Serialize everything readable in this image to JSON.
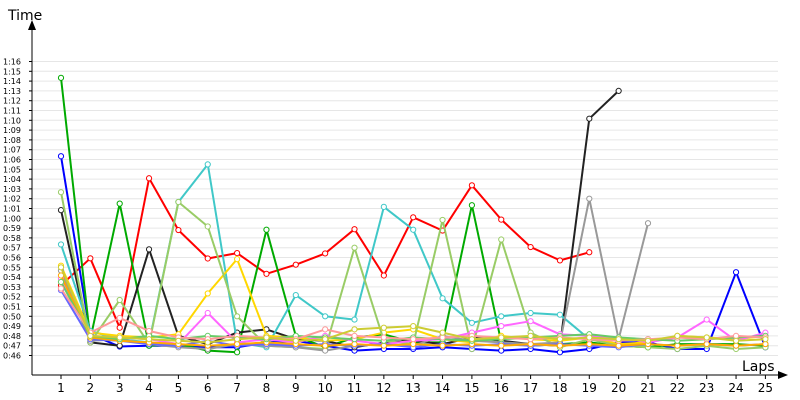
{
  "chart_data": {
    "type": "line",
    "title": "",
    "ylabel": "Time",
    "xlabel": "Laps",
    "x": [
      1,
      2,
      3,
      4,
      5,
      6,
      7,
      8,
      9,
      10,
      11,
      12,
      13,
      14,
      15,
      16,
      17,
      18,
      19,
      20,
      21,
      22,
      23,
      24,
      25
    ],
    "xlim": [
      0,
      25
    ],
    "ylim_seconds": [
      2755,
      4620
    ],
    "y_tick_labels": [
      "0:46",
      "0:47",
      "0:48",
      "0:49",
      "0:50",
      "0:51",
      "0:52",
      "0:53",
      "0:54",
      "0:55",
      "0:56",
      "0:57",
      "0:58",
      "0:59",
      "1:00",
      "1:01",
      "1:02",
      "1:03",
      "1:04",
      "1:05",
      "1:06",
      "1:07",
      "1:08",
      "1:09",
      "1:10",
      "1:11",
      "1:12",
      "1:13",
      "1:14",
      "1:15",
      "1:16"
    ],
    "y_values_unit": "seconds",
    "grid": "horizontal",
    "series": [
      {
        "color": "#ff0000",
        "values": [
          3190,
          3355,
          2930,
          3845,
          3528,
          3354,
          3387,
          3260,
          3316,
          3385,
          3533,
          3250,
          3606,
          3525,
          3802,
          3592,
          3424,
          3342,
          3392,
          null,
          null,
          null,
          null,
          null,
          null
        ]
      },
      {
        "color": "#0000ff",
        "values": [
          3980,
          2890,
          2815,
          2820,
          2820,
          2810,
          2810,
          2840,
          2850,
          2820,
          2790,
          2800,
          2800,
          2810,
          2800,
          2790,
          2800,
          2780,
          2800,
          2840,
          2840,
          2800,
          2800,
          3270,
          2810
        ]
      },
      {
        "color": "#00aa00",
        "values": [
          4460,
          2860,
          3690,
          2820,
          2830,
          2790,
          2780,
          3530,
          2880,
          2810,
          2870,
          2890,
          2840,
          2840,
          3680,
          2840,
          2820,
          2830,
          2840,
          2820,
          2810,
          2830,
          2830,
          2830,
          2820
        ]
      },
      {
        "color": "#222222",
        "values": [
          3650,
          2840,
          2820,
          3410,
          2880,
          2830,
          2900,
          2920,
          2860,
          2850,
          2810,
          2840,
          2850,
          2830,
          2870,
          2850,
          2830,
          2820,
          4210,
          4380,
          null,
          null,
          null,
          null,
          null
        ]
      },
      {
        "color": "#40c8c8",
        "values": [
          3440,
          2910,
          2860,
          2840,
          3700,
          3930,
          2840,
          2810,
          3130,
          3000,
          2980,
          3670,
          3530,
          3110,
          2960,
          3000,
          3020,
          3010,
          2860,
          2830,
          2820,
          null,
          null,
          null,
          null
        ]
      },
      {
        "color": "#ffd700",
        "values": [
          3310,
          2900,
          2880,
          2870,
          2890,
          3140,
          3350,
          2880,
          2870,
          2850,
          2860,
          2900,
          2920,
          2860,
          2840,
          2880,
          2860,
          2850,
          2870,
          2830,
          2840,
          2880,
          2870,
          2860,
          2880
        ]
      },
      {
        "color": "#99cc66",
        "values": [
          3760,
          2840,
          3100,
          2830,
          3700,
          3550,
          3000,
          2820,
          2810,
          2800,
          3420,
          2850,
          2830,
          3590,
          2800,
          3470,
          2900,
          2810,
          2860,
          2820,
          2810,
          2800,
          2820,
          2800,
          2810
        ]
      },
      {
        "color": "#999999",
        "values": [
          3280,
          2850,
          2860,
          2830,
          2810,
          2800,
          2830,
          2820,
          2810,
          2790,
          2820,
          2830,
          2820,
          2880,
          2850,
          2840,
          2830,
          2840,
          3720,
          2860,
          3570,
          null,
          null,
          null,
          null
        ]
      },
      {
        "color": "#ff66ff",
        "values": [
          3230,
          2880,
          2870,
          2860,
          2830,
          3020,
          2840,
          2860,
          2840,
          2880,
          2850,
          2830,
          2850,
          2860,
          2900,
          2940,
          2970,
          2890,
          2880,
          2870,
          2840,
          2870,
          2980,
          2850,
          2900
        ]
      },
      {
        "color": "#6666ff",
        "values": [
          3160,
          2860,
          2850,
          2830,
          2820,
          2850,
          2820,
          2830,
          2820,
          2830,
          2820,
          2830,
          2810,
          2830,
          2820,
          2830,
          2820,
          2830,
          2820,
          2810,
          2830,
          2820,
          2830,
          2820,
          2830
        ]
      },
      {
        "color": "#ffaa00",
        "values": [
          3250,
          2870,
          2850,
          2840,
          2830,
          2820,
          2830,
          2840,
          2830,
          2820,
          2830,
          2820,
          2830,
          2820,
          2830,
          2820,
          2830,
          2820,
          2830,
          2820,
          2830,
          2820,
          2830,
          2820,
          2830
        ]
      },
      {
        "color": "#66cc66",
        "values": [
          3210,
          2880,
          2860,
          2880,
          2860,
          2880,
          2870,
          2860,
          2880,
          2870,
          2860,
          2850,
          2870,
          2860,
          2850,
          2860,
          2870,
          2880,
          2890,
          2870,
          2860,
          2850,
          2860,
          2870,
          2880
        ]
      },
      {
        "color": "#ff9999",
        "values": [
          3170,
          2900,
          2990,
          2910,
          2870,
          2860,
          2880,
          2870,
          2860,
          2920,
          2880,
          2870,
          2860,
          2870,
          2880,
          2870,
          2860,
          2870,
          2860,
          2850,
          2860,
          2870,
          2860,
          2880,
          2870
        ]
      },
      {
        "color": "#cccc33",
        "values": [
          3300,
          2880,
          2870,
          2860,
          2850,
          2840,
          2860,
          2870,
          2850,
          2860,
          2920,
          2930,
          2940,
          2900,
          2860,
          2870,
          2880,
          2860,
          2870,
          2860,
          2850,
          2880,
          2870,
          2850,
          2860
        ]
      }
    ]
  }
}
